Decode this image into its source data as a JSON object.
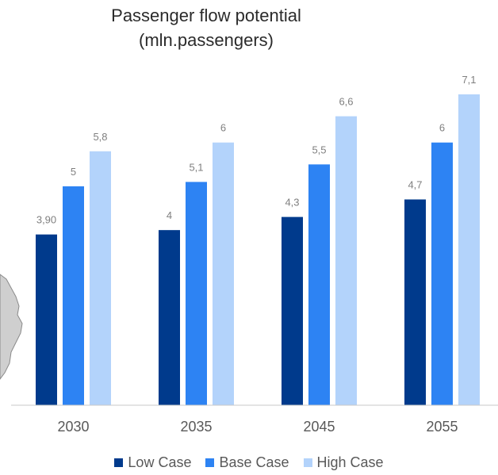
{
  "chart_data": {
    "type": "bar",
    "title": "Passenger flow potential",
    "subtitle": "(mln.passengers)",
    "categories": [
      "2030",
      "2035",
      "2045",
      "2055"
    ],
    "series": [
      {
        "name": "Low Case",
        "color": "#003a8c",
        "values": [
          3.9,
          4.0,
          4.3,
          4.7
        ],
        "labels": [
          "3,90",
          "4",
          "4,3",
          "4,7"
        ]
      },
      {
        "name": "Base Case",
        "color": "#2d83f3",
        "values": [
          5.0,
          5.1,
          5.5,
          6.0
        ],
        "labels": [
          "5",
          "5,1",
          "5,5",
          "6"
        ]
      },
      {
        "name": "High Case",
        "color": "#b3d3fb",
        "values": [
          5.8,
          6.0,
          6.6,
          7.1
        ],
        "labels": [
          "5,8",
          "6",
          "6,6",
          "7,1"
        ]
      }
    ],
    "ylim": [
      0,
      7.1
    ],
    "grid": false,
    "legend_position": "bottom"
  }
}
